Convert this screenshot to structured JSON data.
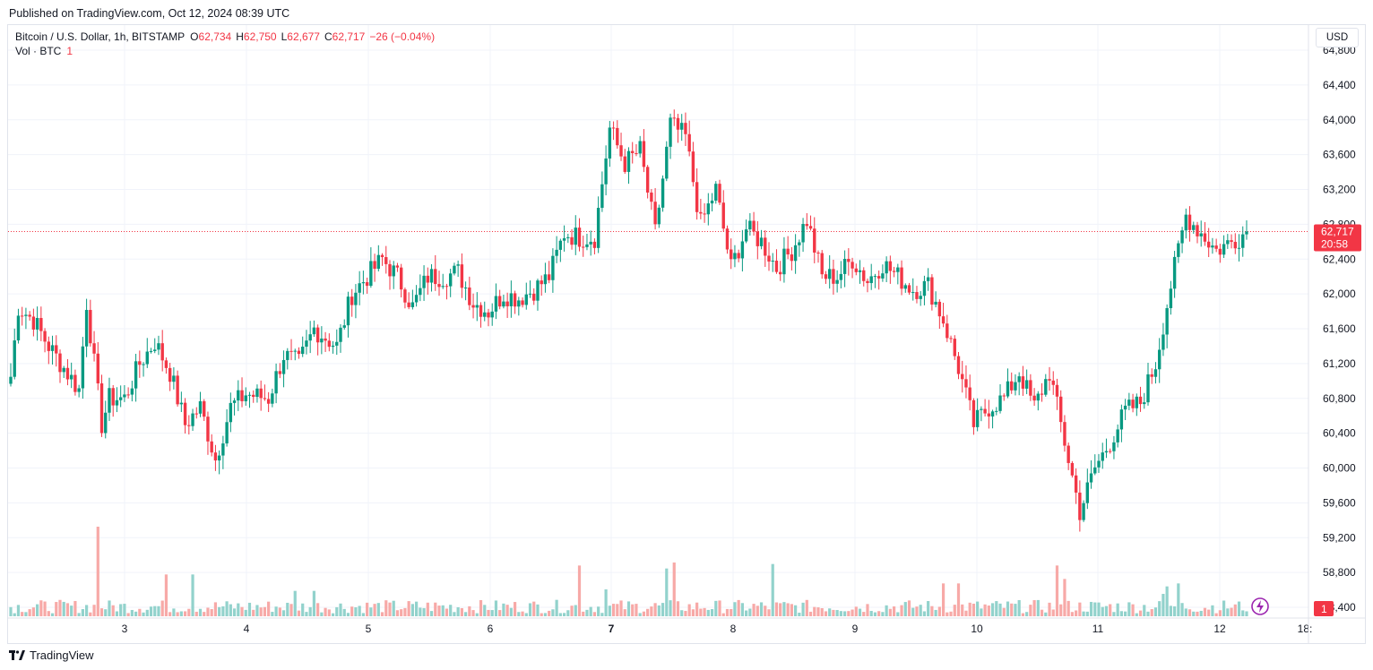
{
  "header": {
    "published": "Published on TradingView.com, Oct 12, 2024 08:39 UTC"
  },
  "legend": {
    "symbol": "Bitcoin / U.S. Dollar, 1h, BITSTAMP",
    "o_label": "O",
    "o_value": "62,734",
    "h_label": "H",
    "h_value": "62,750",
    "l_label": "L",
    "l_value": "62,677",
    "c_label": "C",
    "c_value": "62,717",
    "change": "−26 (−0.04%)",
    "vol_label": "Vol · BTC",
    "vol_value": "1"
  },
  "toolbar": {
    "currency": "USD"
  },
  "price_badge": {
    "price": "62,717",
    "countdown": "20:58"
  },
  "volume_badge": "1",
  "footer": {
    "brand": "TradingView"
  },
  "colors": {
    "up": "#089981",
    "down": "#f23645",
    "up_vol": "#92d2cc",
    "down_vol": "#f7a9a7",
    "grid": "#f0f3fa"
  },
  "chart_data": {
    "type": "candlestick",
    "y_ticks": [
      "64,800",
      "64,400",
      "64,000",
      "63,600",
      "63,200",
      "62,800",
      "62,400",
      "62,000",
      "61,600",
      "61,200",
      "60,800",
      "60,400",
      "60,000",
      "59,600",
      "59,200",
      "58,800",
      "58,400"
    ],
    "ylim": [
      58400,
      64800
    ],
    "x_ticks": [
      "3",
      "4",
      "5",
      "6",
      "7",
      "8",
      "9",
      "10",
      "11",
      "12",
      "18:"
    ],
    "last_price": 62717,
    "anchors": [
      [
        0,
        61050
      ],
      [
        2,
        61850
      ],
      [
        6,
        61700
      ],
      [
        10,
        61400
      ],
      [
        14,
        61150
      ],
      [
        18,
        60900
      ],
      [
        20,
        61900
      ],
      [
        24,
        60500
      ],
      [
        26,
        60800
      ],
      [
        30,
        60800
      ],
      [
        34,
        61200
      ],
      [
        38,
        61450
      ],
      [
        42,
        61100
      ],
      [
        46,
        60500
      ],
      [
        50,
        60700
      ],
      [
        54,
        60100
      ],
      [
        58,
        60700
      ],
      [
        62,
        60850
      ],
      [
        68,
        60800
      ],
      [
        72,
        61300
      ],
      [
        76,
        61200
      ],
      [
        80,
        61600
      ],
      [
        86,
        61400
      ],
      [
        90,
        62000
      ],
      [
        94,
        62200
      ],
      [
        98,
        62400
      ],
      [
        102,
        62200
      ],
      [
        106,
        61850
      ],
      [
        110,
        62200
      ],
      [
        114,
        62200
      ],
      [
        118,
        62250
      ],
      [
        122,
        61900
      ],
      [
        126,
        61800
      ],
      [
        130,
        62000
      ],
      [
        134,
        61950
      ],
      [
        138,
        62050
      ],
      [
        142,
        62200
      ],
      [
        146,
        62700
      ],
      [
        150,
        62650
      ],
      [
        154,
        62650
      ],
      [
        158,
        63900
      ],
      [
        162,
        63500
      ],
      [
        166,
        63650
      ],
      [
        170,
        62700
      ],
      [
        174,
        63950
      ],
      [
        178,
        63800
      ],
      [
        182,
        62800
      ],
      [
        186,
        63200
      ],
      [
        190,
        62300
      ],
      [
        194,
        62750
      ],
      [
        198,
        62600
      ],
      [
        202,
        62300
      ],
      [
        206,
        62500
      ],
      [
        210,
        62850
      ],
      [
        214,
        62200
      ],
      [
        218,
        62200
      ],
      [
        222,
        62400
      ],
      [
        226,
        62150
      ],
      [
        230,
        62350
      ],
      [
        234,
        62200
      ],
      [
        238,
        62050
      ],
      [
        242,
        62100
      ],
      [
        246,
        61700
      ],
      [
        250,
        61150
      ],
      [
        254,
        60500
      ],
      [
        258,
        60700
      ],
      [
        262,
        60800
      ],
      [
        266,
        61100
      ],
      [
        270,
        60700
      ],
      [
        274,
        61100
      ],
      [
        278,
        60300
      ],
      [
        282,
        59500
      ],
      [
        286,
        60000
      ],
      [
        290,
        60300
      ],
      [
        294,
        60650
      ],
      [
        298,
        60750
      ],
      [
        302,
        61200
      ],
      [
        306,
        62100
      ],
      [
        310,
        62900
      ],
      [
        314,
        62700
      ],
      [
        318,
        62500
      ],
      [
        322,
        62600
      ],
      [
        326,
        62717
      ]
    ],
    "volume_max": 60,
    "volume_spikes": [
      [
        23,
        60
      ],
      [
        41,
        28
      ],
      [
        48,
        28
      ],
      [
        75,
        17
      ],
      [
        80,
        17
      ],
      [
        150,
        34
      ],
      [
        157,
        18
      ],
      [
        173,
        32
      ],
      [
        175,
        36
      ],
      [
        201,
        35
      ],
      [
        246,
        22
      ],
      [
        250,
        22
      ],
      [
        276,
        34
      ],
      [
        278,
        25
      ],
      [
        304,
        15
      ],
      [
        305,
        20
      ],
      [
        308,
        22
      ]
    ]
  }
}
